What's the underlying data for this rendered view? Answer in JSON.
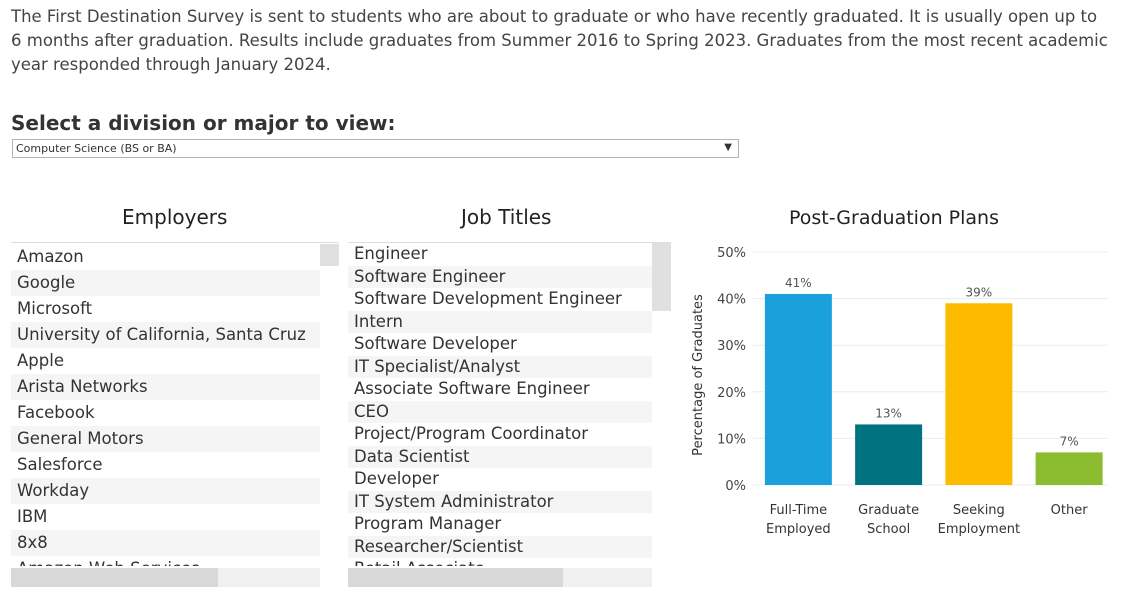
{
  "intro": "The First Destination Survey is sent to students who are about to graduate or who have recently graduated.  It is usually open up to 6 months after graduation.  Results include graduates from Summer 2016 to Spring 2023.  Graduates from the most recent academic year responded through January 2024.",
  "selector": {
    "label": "Select a division or major to view:",
    "value": "Computer Science (BS or BA)",
    "caret": "▼"
  },
  "employers": {
    "title": "Employers",
    "items": [
      "Amazon",
      "Google",
      "Microsoft",
      "University of California, Santa Cruz",
      "Apple",
      "Arista Networks",
      "Facebook",
      "General Motors",
      "Salesforce",
      "Workday",
      "IBM",
      "8x8",
      "Amazon Web Services"
    ]
  },
  "job_titles": {
    "title": "Job Titles",
    "items": [
      "Engineer",
      "Software Engineer",
      "Software Development Engineer",
      "Intern",
      "Software Developer",
      "IT Specialist/Analyst",
      "Associate Software Engineer",
      "CEO",
      "Project/Program Coordinator",
      "Data Scientist",
      "Developer",
      "IT System Administrator",
      "Program Manager",
      "Researcher/Scientist",
      "Retail Associate"
    ]
  },
  "chart_data": {
    "type": "bar",
    "title": "Post-Graduation Plans",
    "ylabel": "Percentage of Graduates",
    "xlabel": "",
    "ylim": [
      0,
      50
    ],
    "yticks": [
      0,
      10,
      20,
      30,
      40,
      50
    ],
    "ytick_labels": [
      "0%",
      "10%",
      "20%",
      "30%",
      "40%",
      "50%"
    ],
    "categories": [
      [
        "Full-Time",
        "Employed"
      ],
      [
        "Graduate",
        "School"
      ],
      [
        "Seeking",
        "Employment"
      ],
      [
        "Other"
      ]
    ],
    "values": [
      41,
      13,
      39,
      7
    ],
    "data_labels": [
      "41%",
      "13%",
      "39%",
      "7%"
    ],
    "colors": [
      "#1aa1db",
      "#007380",
      "#fdbb00",
      "#8cbd30"
    ],
    "grid": true
  }
}
